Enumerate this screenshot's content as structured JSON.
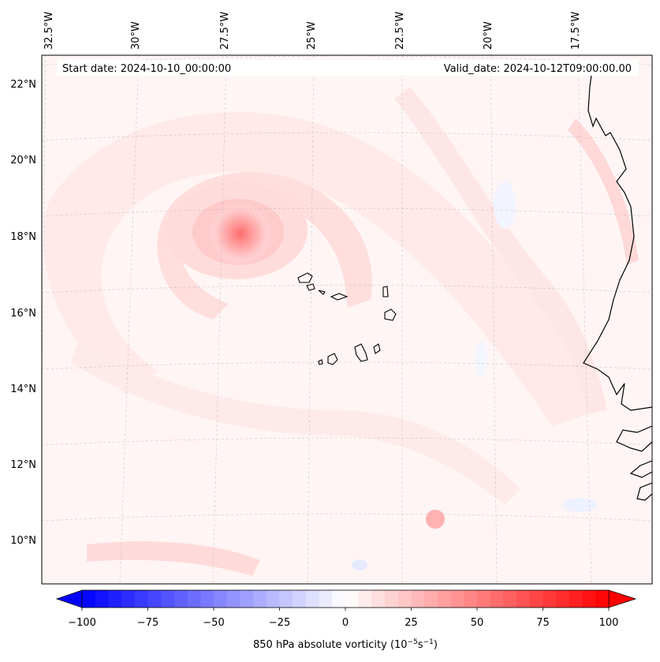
{
  "map": {
    "start_label": "Start date: 2024-10-10_00:00:00",
    "valid_label": "Valid_date: 2024-10-12T09:00:00.00",
    "lon_labels": [
      "32.5°W",
      "30°W",
      "27.5°W",
      "25°W",
      "22.5°W",
      "20°W",
      "17.5°W"
    ],
    "lat_labels": [
      "22°N",
      "20°N",
      "18°N",
      "16°N",
      "14°N",
      "12°N",
      "10°N"
    ],
    "colorbar": {
      "ticks": [
        "−100",
        "−75",
        "−50",
        "−25",
        "0",
        "25",
        "50",
        "75",
        "100"
      ],
      "label_main": "850 hPa absolute vorticity (10",
      "label_sup1": "−5",
      "label_mid": "s",
      "label_sup2": "−1",
      "label_end": ")",
      "min": -100,
      "max": 100,
      "color_negative": "#0000ff",
      "color_zero": "#ffffff",
      "color_positive": "#ff0000"
    },
    "features": {
      "vortex_center": {
        "lon": -27.0,
        "lat": 18.1
      },
      "islands": "Cabo Verde",
      "coast": "West Africa"
    }
  }
}
